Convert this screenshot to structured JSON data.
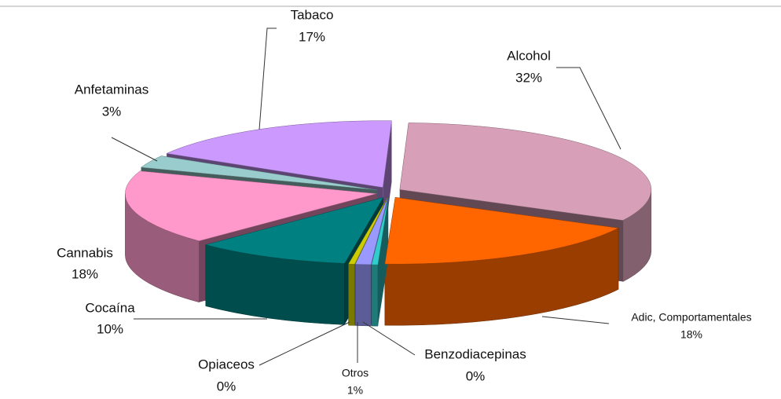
{
  "chart_data": {
    "type": "pie3d",
    "categories": [
      "Alcohol",
      "Adic, Comportamentales",
      "Benzodiacepinas",
      "Otros",
      "Opiaceos",
      "Cocaína",
      "Cannabis",
      "Anfetaminas",
      "Tabaco"
    ],
    "values": [
      32,
      18,
      0.4,
      1,
      0.4,
      10,
      18,
      3,
      17
    ],
    "value_labels": [
      "32%",
      "18%",
      "0%",
      "1%",
      "0%",
      "10%",
      "18%",
      "3%",
      "17%"
    ],
    "colors": [
      "#d8a0b8",
      "#ff6600",
      "#33cccc",
      "#9999ff",
      "#cccc00",
      "#008080",
      "#ff99cc",
      "#99cccc",
      "#cc99ff"
    ]
  }
}
